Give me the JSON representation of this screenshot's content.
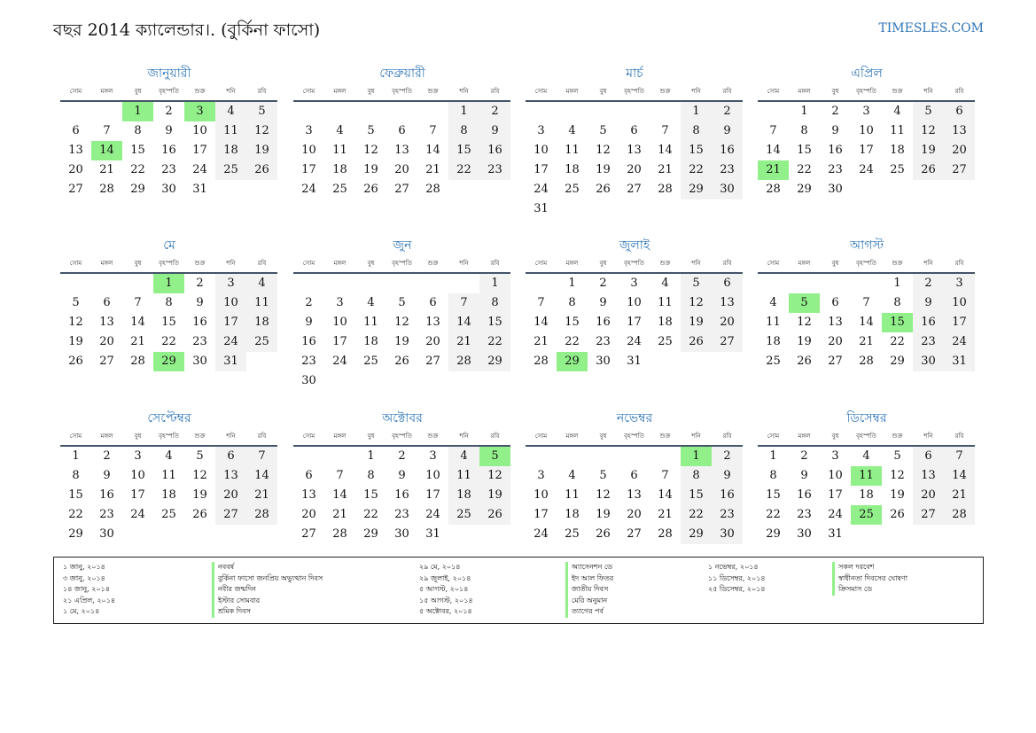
{
  "header": {
    "title": "বছর 2014 ক্যালেন্ডার।. (বুর্কিনা ফাসো)",
    "site": "TIMESLES.COM"
  },
  "colors": {
    "accent": "#2e75b6",
    "holiday": "#92f08a",
    "weekend": "#f2f2f2",
    "rule": "#44546a"
  },
  "weekdays": [
    "সোম",
    "মঙ্গল",
    "বুধ",
    "বৃহস্পতি",
    "শুক্র",
    "শনি",
    "রবি"
  ],
  "months": [
    {
      "name": "জানুয়ারী",
      "offset": 2,
      "days": 31,
      "holidays": [
        1,
        3,
        14
      ]
    },
    {
      "name": "ফেব্রুয়ারী",
      "offset": 5,
      "days": 28,
      "holidays": []
    },
    {
      "name": "মার্চ",
      "offset": 5,
      "days": 31,
      "holidays": []
    },
    {
      "name": "এপ্রিল",
      "offset": 1,
      "days": 30,
      "holidays": [
        21
      ]
    },
    {
      "name": "মে",
      "offset": 3,
      "days": 31,
      "holidays": [
        1,
        29
      ]
    },
    {
      "name": "জুন",
      "offset": 6,
      "days": 30,
      "holidays": []
    },
    {
      "name": "জুলাই",
      "offset": 1,
      "days": 31,
      "holidays": [
        29
      ]
    },
    {
      "name": "আগস্ট",
      "offset": 4,
      "days": 31,
      "holidays": [
        5,
        15
      ]
    },
    {
      "name": "সেপ্টেম্বর",
      "offset": 0,
      "days": 30,
      "holidays": []
    },
    {
      "name": "অক্টোবর",
      "offset": 2,
      "days": 31,
      "holidays": [
        5
      ]
    },
    {
      "name": "নভেম্বর",
      "offset": 5,
      "days": 30,
      "holidays": [
        1
      ]
    },
    {
      "name": "ডিসেম্বর",
      "offset": 0,
      "days": 31,
      "holidays": [
        11,
        25
      ]
    }
  ],
  "holiday_list": [
    [
      {
        "date": "১ জানু, ২০১৪",
        "name": "নববর্ষ"
      },
      {
        "date": "৩ জানু, ২০১৪",
        "name": "বুর্কিনা ফাসো জনপ্রিয় অভ্যুত্থান দিবস"
      },
      {
        "date": "১৪ জানু, ২০১৪",
        "name": "নবীর জন্মদিন"
      },
      {
        "date": "২১ এপ্রিল, ২০১৪",
        "name": "ইস্টার সোমবার"
      },
      {
        "date": "১ মে, ২০১৪",
        "name": "শ্রমিক দিবস"
      }
    ],
    [
      {
        "date": "২৯ মে, ২০১৪",
        "name": "অ্যাসেনশন ডে"
      },
      {
        "date": "২৯ জুলাই, ২০১৪",
        "name": "ইদ আল ফিতর"
      },
      {
        "date": "৫ আগস্ট, ২০১৪",
        "name": "জাতীয় দিবস"
      },
      {
        "date": "১৫ আগস্ট, ২০১৪",
        "name": "মেরি অনুমান"
      },
      {
        "date": "৫ অক্টোবর, ২০১৪",
        "name": "ত্যাগের পর্ব"
      }
    ],
    [
      {
        "date": "১ নভেম্বর, ২০১৪",
        "name": "সকল দরবেশ"
      },
      {
        "date": "১১ ডিসেম্বর, ২০১৪",
        "name": "স্বাধীনতা দিবসের ঘোষণা"
      },
      {
        "date": "২৫ ডিসেম্বর, ২০১৪",
        "name": "ক্রিসমাস ডে"
      }
    ]
  ]
}
